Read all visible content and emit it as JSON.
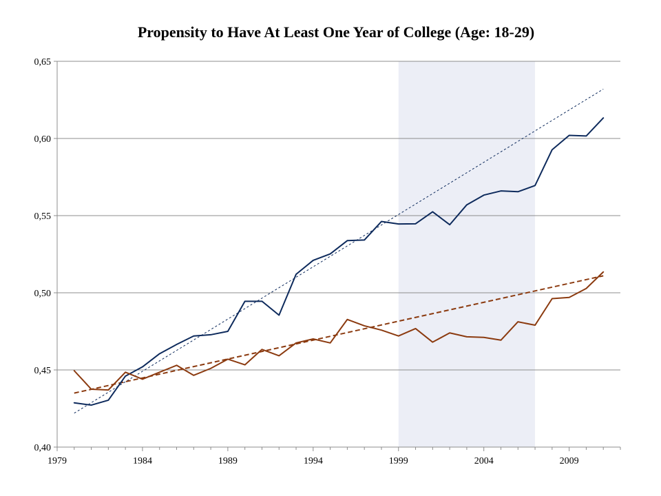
{
  "chart_data": {
    "type": "line",
    "title": "Propensity to Have At Least One Year of College (Age: 18-29)",
    "xlabel": "",
    "ylabel": "",
    "xlim": [
      1979,
      2012
    ],
    "ylim": [
      0.4,
      0.65
    ],
    "x_ticks": [
      "1979",
      "1984",
      "1989",
      "1994",
      "1999",
      "2004",
      "2009"
    ],
    "y_ticks": [
      "0,40",
      "0,45",
      "0,50",
      "0,55",
      "0,60",
      "0,65"
    ],
    "grid": true,
    "shaded_region": {
      "x_start": 1999,
      "x_end": 2007
    },
    "x": [
      1980,
      1981,
      1982,
      1983,
      1984,
      1985,
      1986,
      1987,
      1988,
      1989,
      1990,
      1991,
      1992,
      1993,
      1994,
      1995,
      1996,
      1997,
      1998,
      1999,
      2000,
      2001,
      2002,
      2003,
      2004,
      2005,
      2006,
      2007,
      2008,
      2009,
      2010,
      2011
    ],
    "series": [
      {
        "color": "#0d2a5c",
        "values": [
          0.4287,
          0.4272,
          0.4304,
          0.446,
          0.452,
          0.4605,
          0.4665,
          0.472,
          0.4728,
          0.475,
          0.4945,
          0.4945,
          0.4855,
          0.512,
          0.521,
          0.5252,
          0.5338,
          0.5342,
          0.5462,
          0.5446,
          0.5447,
          0.5525,
          0.5441,
          0.557,
          0.5633,
          0.566,
          0.5655,
          0.5695,
          0.5927,
          0.602,
          0.6016,
          0.6133
        ],
        "trend": [
          0.422,
          0.632
        ]
      },
      {
        "color": "#8b3a0f",
        "values": [
          0.4495,
          0.4375,
          0.437,
          0.4485,
          0.444,
          0.4485,
          0.453,
          0.4465,
          0.451,
          0.457,
          0.4533,
          0.4633,
          0.4592,
          0.4675,
          0.4701,
          0.4675,
          0.4827,
          0.4786,
          0.4758,
          0.472,
          0.4768,
          0.468,
          0.474,
          0.4715,
          0.4711,
          0.4693,
          0.4812,
          0.479,
          0.4962,
          0.497,
          0.5028,
          0.5135
        ],
        "trend": [
          0.435,
          0.511
        ]
      }
    ]
  }
}
